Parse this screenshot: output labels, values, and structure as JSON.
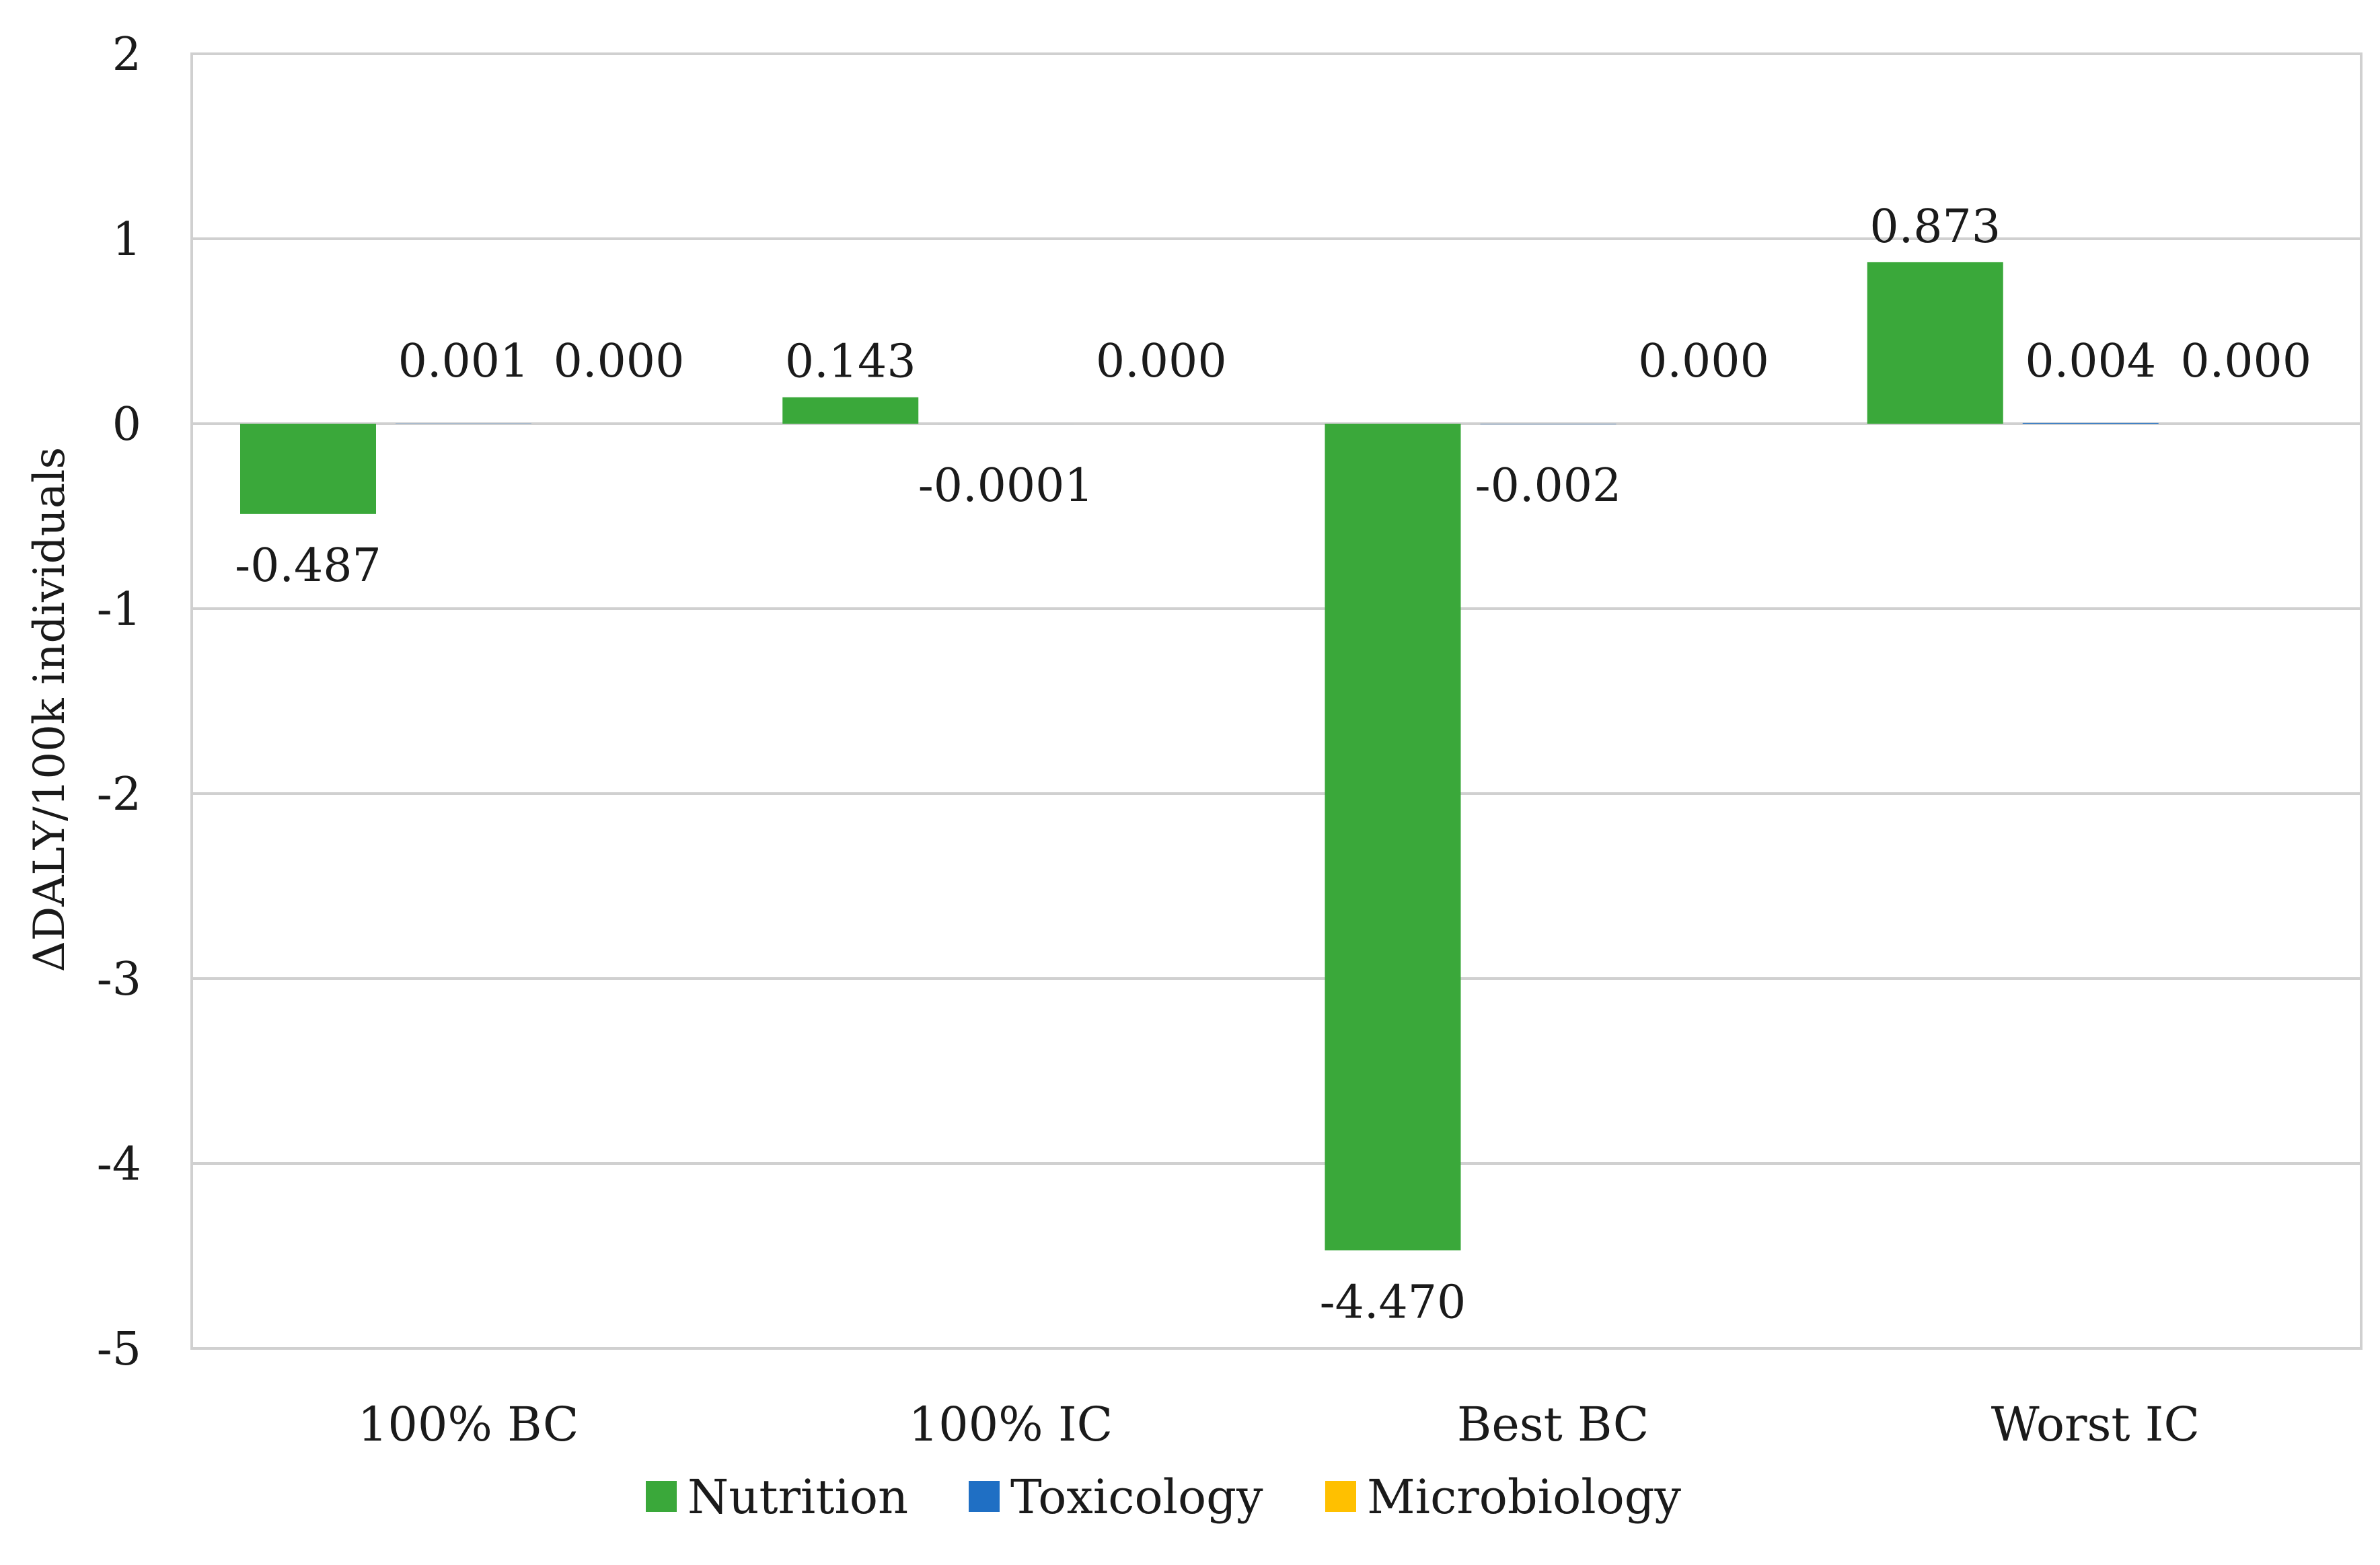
{
  "chart_data": {
    "type": "bar",
    "title": "",
    "xlabel": "",
    "ylabel": "ΔDALY/100k individuals",
    "ylim": [
      -5,
      2
    ],
    "yticks": [
      2,
      1,
      0,
      -1,
      -2,
      -3,
      -4,
      -5
    ],
    "grid": true,
    "legend_position": "bottom",
    "categories": [
      "100% BC",
      "100% IC",
      "Best BC",
      "Worst IC"
    ],
    "series": [
      {
        "name": "Nutrition",
        "color": "#3aa83a",
        "values": [
          -0.487,
          0.143,
          -4.47,
          0.873
        ],
        "labels": [
          "-0.487",
          "0.143",
          "-4.470",
          "0.873"
        ]
      },
      {
        "name": "Toxicology",
        "color": "#1f6fc4",
        "values": [
          0.001,
          -0.0001,
          -0.002,
          0.004
        ],
        "labels": [
          "0.001",
          "-0.0001",
          "-0.002",
          "0.004"
        ]
      },
      {
        "name": "Microbiology",
        "color": "#ffc000",
        "values": [
          0.0,
          0.0,
          0.0,
          0.0
        ],
        "labels": [
          "0.000",
          "0.000",
          "0.000",
          "0.000"
        ]
      }
    ]
  }
}
